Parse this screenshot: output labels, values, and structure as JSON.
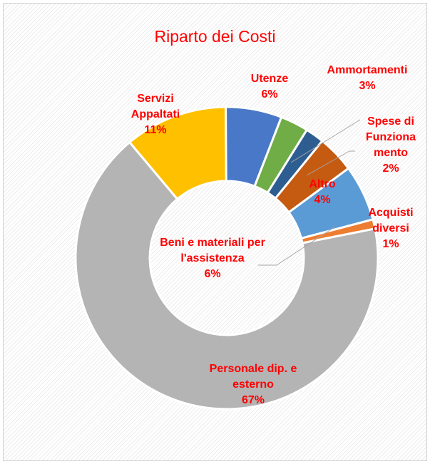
{
  "chart_data": {
    "type": "donut",
    "title": "Riparto dei Costi",
    "categories": [
      "Servizi Appaltati",
      "Utenze",
      "Ammortamenti",
      "Spese di Funzionamento",
      "Altro",
      "Beni e materiali per l'assistenza",
      "Acquisti diversi",
      "Personale dip. e esterno"
    ],
    "values": [
      11,
      6,
      3,
      2,
      4,
      6,
      1,
      67
    ],
    "value_labels": [
      "11%",
      "6%",
      "3%",
      "2%",
      "4%",
      "6%",
      "1%",
      "67%"
    ],
    "colors": [
      "#ffc000",
      "#4a78c8",
      "#70ad47",
      "#2e5e91",
      "#c55a11",
      "#5b9bd5",
      "#ed7d31",
      "#b4b4b4"
    ]
  }
}
